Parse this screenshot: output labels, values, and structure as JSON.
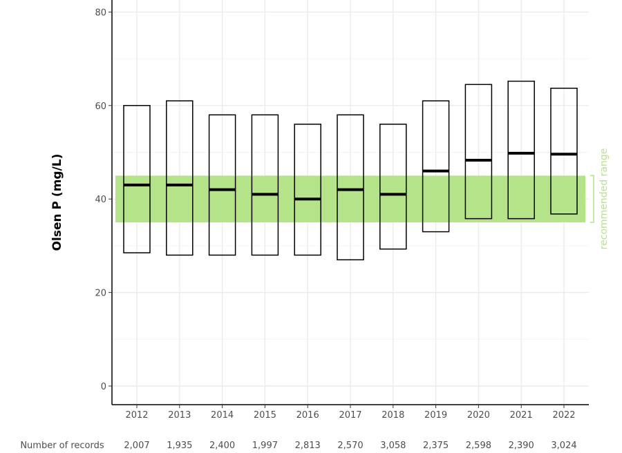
{
  "chart_data": {
    "type": "box",
    "ylabel": "Olsen P (mg/L)",
    "xlabel": "",
    "ylim": [
      0,
      80
    ],
    "yticks": [
      0,
      20,
      40,
      60,
      80
    ],
    "grid": true,
    "categories": [
      "2012",
      "2013",
      "2014",
      "2015",
      "2016",
      "2017",
      "2018",
      "2019",
      "2020",
      "2021",
      "2022"
    ],
    "boxes": [
      {
        "year": "2012",
        "q1": 28.5,
        "median": 43,
        "q3": 60
      },
      {
        "year": "2013",
        "q1": 28,
        "median": 43,
        "q3": 61
      },
      {
        "year": "2014",
        "q1": 28,
        "median": 42,
        "q3": 58
      },
      {
        "year": "2015",
        "q1": 28,
        "median": 41,
        "q3": 58
      },
      {
        "year": "2016",
        "q1": 28,
        "median": 40,
        "q3": 56
      },
      {
        "year": "2017",
        "q1": 27,
        "median": 42,
        "q3": 58
      },
      {
        "year": "2018",
        "q1": 29.3,
        "median": 41,
        "q3": 56
      },
      {
        "year": "2019",
        "q1": 33,
        "median": 46,
        "q3": 61
      },
      {
        "year": "2020",
        "q1": 35.8,
        "median": 48.3,
        "q3": 64.5
      },
      {
        "year": "2021",
        "q1": 35.8,
        "median": 49.8,
        "q3": 65.2
      },
      {
        "year": "2022",
        "q1": 36.8,
        "median": 49.6,
        "q3": 63.7
      }
    ],
    "records_label": "Number of records",
    "records": [
      "2,007",
      "1,935",
      "2,400",
      "1,997",
      "2,813",
      "2,570",
      "3,058",
      "2,375",
      "2,598",
      "2,390",
      "3,024"
    ],
    "recommended_range": {
      "low": 35,
      "high": 45,
      "label": "recommended range",
      "color": "#b5e38a"
    }
  }
}
